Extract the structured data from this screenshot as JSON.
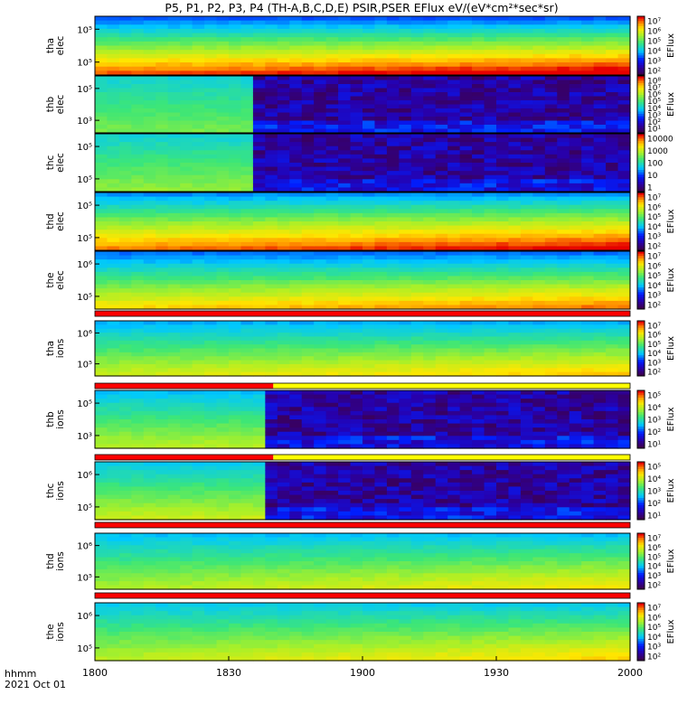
{
  "title": "P5, P1, P2, P3, P4 (TH-A,B,C,D,E) PSIR,PSER EFlux eV/(eV*cm²*sec*sr)",
  "time_axis": {
    "ticks": [
      "1800",
      "1830",
      "1900",
      "1930",
      "2000"
    ],
    "unit_label": "hhmm",
    "date_label": "2021 Oct 01"
  },
  "chart_data": [
    {
      "type": "heatmap",
      "probe": "tha",
      "species": "elec",
      "ylabel_line1": "tha",
      "ylabel_line2": "elec",
      "y_ticks": [
        "10⁵",
        "10⁵"
      ],
      "colorbar_label": "EFlux",
      "colorbar_ticks": [
        "10⁷",
        "10⁶",
        "10⁵",
        "10⁴",
        "10³",
        "10²"
      ],
      "x_range": [
        "1800",
        "2000"
      ],
      "pattern": "smooth",
      "base_fraction_top": 0.3,
      "base_fraction_bottom": 0.93
    },
    {
      "type": "heatmap",
      "probe": "thb",
      "species": "elec",
      "ylabel_line1": "thb",
      "ylabel_line2": "elec",
      "y_ticks": [
        "10⁵",
        "10³"
      ],
      "colorbar_label": "EFlux",
      "colorbar_ticks": [
        "10⁸",
        "10⁷",
        "10⁶",
        "10⁵",
        "10⁴",
        "10³",
        "10²",
        "10¹"
      ],
      "x_range": [
        "1800",
        "2000"
      ],
      "pattern": "cutoff",
      "cutoff_time": "1835",
      "base_fraction_top": 0.45,
      "base_fraction_bottom": 0.62
    },
    {
      "type": "heatmap",
      "probe": "thc",
      "species": "elec",
      "ylabel_line1": "thc",
      "ylabel_line2": "elec",
      "y_ticks": [
        "10⁵",
        "10⁵"
      ],
      "colorbar_label": "",
      "colorbar_ticks": [
        "10000",
        "1000",
        "100",
        "10",
        "1"
      ],
      "x_range": [
        "1800",
        "2000"
      ],
      "pattern": "cutoff",
      "cutoff_time": "1833",
      "base_fraction_top": 0.45,
      "base_fraction_bottom": 0.65
    },
    {
      "type": "heatmap",
      "probe": "thd",
      "species": "elec",
      "ylabel_line1": "thd",
      "ylabel_line2": "elec",
      "y_ticks": [
        "10⁵",
        "10⁵"
      ],
      "colorbar_label": "EFlux",
      "colorbar_ticks": [
        "10⁷",
        "10⁶",
        "10⁵",
        "10⁴",
        "10³",
        "10²"
      ],
      "x_range": [
        "1800",
        "2000"
      ],
      "pattern": "smooth",
      "base_fraction_top": 0.35,
      "base_fraction_bottom": 0.9
    },
    {
      "type": "heatmap",
      "probe": "the",
      "species": "elec",
      "ylabel_line1": "the",
      "ylabel_line2": "elec",
      "y_ticks": [
        "10⁶",
        "10⁵"
      ],
      "colorbar_label": "EFlux",
      "colorbar_ticks": [
        "10⁷",
        "10⁶",
        "10⁵",
        "10⁴",
        "10³",
        "10²"
      ],
      "x_range": [
        "1800",
        "2000"
      ],
      "pattern": "smooth",
      "base_fraction_top": 0.32,
      "base_fraction_bottom": 0.8
    },
    {
      "type": "heatmap",
      "probe": "tha",
      "species": "ions",
      "ylabel_line1": "tha",
      "ylabel_line2": "ions",
      "y_ticks": [
        "10⁶",
        "10⁵"
      ],
      "colorbar_label": "EFlux",
      "colorbar_ticks": [
        "10⁷",
        "10⁶",
        "10⁵",
        "10⁴",
        "10³",
        "10²"
      ],
      "x_range": [
        "1800",
        "2000"
      ],
      "pattern": "smooth",
      "base_fraction_top": 0.38,
      "base_fraction_bottom": 0.72
    },
    {
      "type": "heatmap",
      "probe": "thb",
      "species": "ions",
      "ylabel_line1": "thb",
      "ylabel_line2": "ions",
      "y_ticks": [
        "10⁵",
        "10³"
      ],
      "colorbar_label": "EFlux",
      "colorbar_ticks": [
        "10⁵",
        "10⁴",
        "10³",
        "10²",
        "10¹"
      ],
      "x_range": [
        "1800",
        "2000"
      ],
      "pattern": "cutoff",
      "cutoff_time": "1838",
      "base_fraction_top": 0.4,
      "base_fraction_bottom": 0.7
    },
    {
      "type": "heatmap",
      "probe": "thc",
      "species": "ions",
      "ylabel_line1": "thc",
      "ylabel_line2": "ions",
      "y_ticks": [
        "10⁶",
        "10⁵"
      ],
      "colorbar_label": "EFlux",
      "colorbar_ticks": [
        "10⁵",
        "10⁴",
        "10³",
        "10²",
        "10¹"
      ],
      "x_range": [
        "1800",
        "2000"
      ],
      "pattern": "cutoff",
      "cutoff_time": "1836",
      "base_fraction_top": 0.42,
      "base_fraction_bottom": 0.72
    },
    {
      "type": "heatmap",
      "probe": "thd",
      "species": "ions",
      "ylabel_line1": "thd",
      "ylabel_line2": "ions",
      "y_ticks": [
        "10⁶",
        "10⁵"
      ],
      "colorbar_label": "EFlux",
      "colorbar_ticks": [
        "10⁷",
        "10⁶",
        "10⁵",
        "10⁴",
        "10³",
        "10²"
      ],
      "x_range": [
        "1800",
        "2000"
      ],
      "pattern": "smooth",
      "base_fraction_top": 0.4,
      "base_fraction_bottom": 0.68
    },
    {
      "type": "heatmap",
      "probe": "the",
      "species": "ions",
      "ylabel_line1": "the",
      "ylabel_line2": "ions",
      "y_ticks": [
        "10⁶",
        "10⁵"
      ],
      "colorbar_label": "EFlux",
      "colorbar_ticks": [
        "10⁷",
        "10⁶",
        "10⁵",
        "10⁴",
        "10³",
        "10²"
      ],
      "x_range": [
        "1800",
        "2000"
      ],
      "pattern": "smooth",
      "base_fraction_top": 0.42,
      "base_fraction_bottom": 0.7
    }
  ],
  "mode_bars": [
    {
      "after_panel": 4,
      "segments": [
        {
          "color": "#ff0000",
          "from": "1800",
          "to": "2000"
        }
      ]
    },
    {
      "after_panel": 5,
      "segments": [
        {
          "color": "#ff0000",
          "from": "1800",
          "to": "1840"
        },
        {
          "color": "#ffff00",
          "from": "1840",
          "to": "2000"
        }
      ]
    },
    {
      "after_panel": 6,
      "segments": [
        {
          "color": "#ff0000",
          "from": "1800",
          "to": "1840"
        },
        {
          "color": "#ffff00",
          "from": "1840",
          "to": "2000"
        }
      ]
    },
    {
      "after_panel": 7,
      "segments": [
        {
          "color": "#ff0000",
          "from": "1800",
          "to": "2000"
        }
      ]
    },
    {
      "after_panel": 8,
      "segments": [
        {
          "color": "#ff0000",
          "from": "1800",
          "to": "2000"
        }
      ]
    }
  ]
}
